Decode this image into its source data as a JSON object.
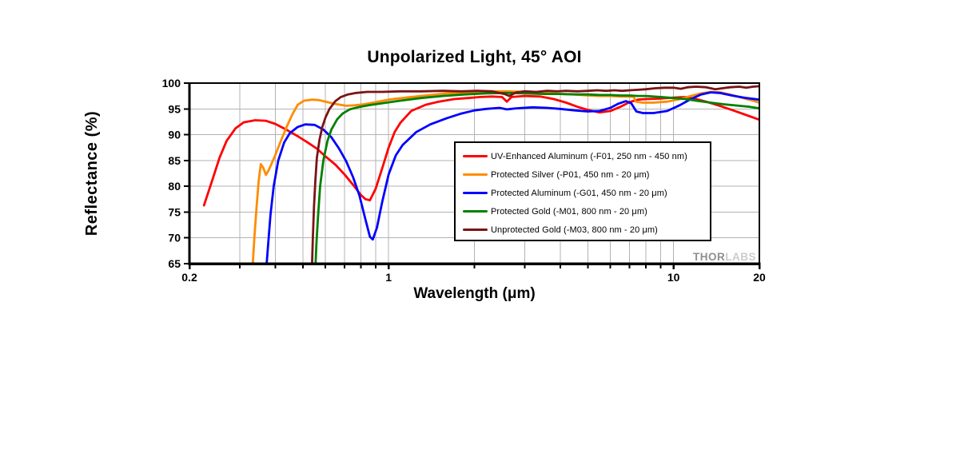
{
  "chart": {
    "title": "Unpolarized Light, 45° AOI",
    "xlabel": "Wavelength (μm)",
    "ylabel": "Reflectance (%)",
    "watermark_bold": "THOR",
    "watermark_light": "LABS"
  },
  "chart_data": {
    "type": "line",
    "title": "Unpolarized Light, 45° AOI",
    "xlabel": "Wavelength (μm)",
    "ylabel": "Reflectance (%)",
    "x_scale": "log",
    "xlim": [
      0.2,
      20
    ],
    "ylim": [
      65,
      100
    ],
    "grid": true,
    "grid_color": "#b3b3b3",
    "axis_color": "#000000",
    "x_ticks_labeled": [
      "0.2",
      "1",
      "10",
      "20"
    ],
    "x_gridlines": [
      0.3,
      0.4,
      0.5,
      0.6,
      0.7,
      0.8,
      0.9,
      1,
      2,
      3,
      4,
      5,
      6,
      7,
      8,
      9,
      10,
      20
    ],
    "y_ticks": [
      65,
      70,
      75,
      80,
      85,
      90,
      95,
      100
    ],
    "legend_position": "inside-right-middle",
    "series": [
      {
        "name": "UV-Enhanced Aluminum (-F01, 250 nm - 450 nm)",
        "color": "#ff0000",
        "points": [
          [
            0.225,
            76.3
          ],
          [
            0.24,
            81.0
          ],
          [
            0.255,
            85.5
          ],
          [
            0.27,
            88.8
          ],
          [
            0.29,
            91.2
          ],
          [
            0.31,
            92.4
          ],
          [
            0.34,
            92.8
          ],
          [
            0.37,
            92.7
          ],
          [
            0.4,
            92.1
          ],
          [
            0.44,
            90.9
          ],
          [
            0.48,
            89.7
          ],
          [
            0.52,
            88.5
          ],
          [
            0.56,
            87.3
          ],
          [
            0.6,
            85.8
          ],
          [
            0.65,
            84.2
          ],
          [
            0.7,
            82.3
          ],
          [
            0.75,
            80.3
          ],
          [
            0.8,
            78.3
          ],
          [
            0.83,
            77.5
          ],
          [
            0.86,
            77.3
          ],
          [
            0.9,
            79.5
          ],
          [
            0.95,
            83.5
          ],
          [
            1.0,
            87.5
          ],
          [
            1.05,
            90.5
          ],
          [
            1.1,
            92.3
          ],
          [
            1.2,
            94.6
          ],
          [
            1.35,
            95.8
          ],
          [
            1.5,
            96.4
          ],
          [
            1.7,
            96.9
          ],
          [
            1.9,
            97.1
          ],
          [
            2.1,
            97.3
          ],
          [
            2.3,
            97.4
          ],
          [
            2.5,
            97.3
          ],
          [
            2.6,
            96.4
          ],
          [
            2.7,
            97.3
          ],
          [
            3.0,
            97.5
          ],
          [
            3.4,
            97.4
          ],
          [
            3.8,
            96.9
          ],
          [
            4.2,
            96.2
          ],
          [
            4.6,
            95.4
          ],
          [
            5.0,
            94.8
          ],
          [
            5.5,
            94.3
          ],
          [
            6.0,
            94.6
          ],
          [
            6.5,
            95.4
          ],
          [
            7.0,
            96.3
          ],
          [
            7.5,
            96.8
          ],
          [
            8.0,
            96.9
          ],
          [
            9.0,
            97.0
          ],
          [
            10.0,
            97.2
          ],
          [
            11.0,
            97.3
          ],
          [
            12.0,
            96.9
          ],
          [
            13.0,
            96.4
          ],
          [
            14.5,
            95.6
          ],
          [
            16.0,
            94.8
          ],
          [
            18.0,
            93.8
          ],
          [
            20.0,
            92.9
          ]
        ]
      },
      {
        "name": "Protected Silver (-P01, 450 nm - 20 μm)",
        "color": "#ff8c00",
        "points": [
          [
            0.333,
            64
          ],
          [
            0.338,
            70
          ],
          [
            0.344,
            76
          ],
          [
            0.35,
            81
          ],
          [
            0.356,
            84.3
          ],
          [
            0.363,
            83.6
          ],
          [
            0.371,
            82.2
          ],
          [
            0.38,
            83.2
          ],
          [
            0.4,
            86.0
          ],
          [
            0.42,
            89.0
          ],
          [
            0.44,
            91.7
          ],
          [
            0.46,
            94.0
          ],
          [
            0.48,
            95.8
          ],
          [
            0.505,
            96.6
          ],
          [
            0.54,
            96.8
          ],
          [
            0.57,
            96.7
          ],
          [
            0.61,
            96.3
          ],
          [
            0.66,
            95.9
          ],
          [
            0.71,
            95.6
          ],
          [
            0.76,
            95.7
          ],
          [
            0.82,
            95.9
          ],
          [
            0.9,
            96.3
          ],
          [
            1.0,
            96.8
          ],
          [
            1.15,
            97.2
          ],
          [
            1.35,
            97.6
          ],
          [
            1.6,
            98.0
          ],
          [
            1.9,
            98.2
          ],
          [
            2.2,
            98.4
          ],
          [
            2.6,
            98.4
          ],
          [
            3.0,
            98.3
          ],
          [
            3.5,
            98.1
          ],
          [
            4.0,
            97.9
          ],
          [
            4.5,
            97.8
          ],
          [
            5.0,
            97.6
          ],
          [
            5.5,
            97.5
          ],
          [
            6.0,
            97.5
          ],
          [
            6.5,
            97.4
          ],
          [
            7.0,
            97.4
          ],
          [
            7.25,
            97.3
          ],
          [
            7.38,
            96.4
          ],
          [
            7.8,
            96.2
          ],
          [
            8.5,
            96.2
          ],
          [
            9.5,
            96.4
          ],
          [
            10.5,
            96.9
          ],
          [
            11.5,
            97.5
          ],
          [
            12.5,
            98.0
          ],
          [
            13.5,
            98.3
          ],
          [
            14.6,
            98.2
          ],
          [
            16.0,
            97.7
          ],
          [
            17.5,
            97.1
          ],
          [
            19.0,
            96.6
          ],
          [
            20.0,
            96.2
          ]
        ]
      },
      {
        "name": "Protected Aluminum (-G01, 450 nm - 20 μm)",
        "color": "#0000ff",
        "points": [
          [
            0.372,
            64
          ],
          [
            0.378,
            69
          ],
          [
            0.385,
            74.5
          ],
          [
            0.395,
            80
          ],
          [
            0.41,
            85
          ],
          [
            0.43,
            88.5
          ],
          [
            0.45,
            90.3
          ],
          [
            0.48,
            91.5
          ],
          [
            0.51,
            92.0
          ],
          [
            0.55,
            91.9
          ],
          [
            0.59,
            91.0
          ],
          [
            0.63,
            89.5
          ],
          [
            0.67,
            87.3
          ],
          [
            0.71,
            84.8
          ],
          [
            0.75,
            81.8
          ],
          [
            0.79,
            78.2
          ],
          [
            0.83,
            73.5
          ],
          [
            0.86,
            70.2
          ],
          [
            0.88,
            69.7
          ],
          [
            0.91,
            72.0
          ],
          [
            0.95,
            77.0
          ],
          [
            1.0,
            82.3
          ],
          [
            1.06,
            86.0
          ],
          [
            1.12,
            88.0
          ],
          [
            1.25,
            90.5
          ],
          [
            1.4,
            92.0
          ],
          [
            1.6,
            93.2
          ],
          [
            1.8,
            94.1
          ],
          [
            2.0,
            94.7
          ],
          [
            2.2,
            95.0
          ],
          [
            2.45,
            95.2
          ],
          [
            2.6,
            94.9
          ],
          [
            2.8,
            95.1
          ],
          [
            3.2,
            95.3
          ],
          [
            3.6,
            95.2
          ],
          [
            4.0,
            95.0
          ],
          [
            4.5,
            94.7
          ],
          [
            5.0,
            94.5
          ],
          [
            5.5,
            94.6
          ],
          [
            6.0,
            95.2
          ],
          [
            6.4,
            96.0
          ],
          [
            6.8,
            96.5
          ],
          [
            7.1,
            96.1
          ],
          [
            7.4,
            94.5
          ],
          [
            7.8,
            94.2
          ],
          [
            8.5,
            94.2
          ],
          [
            9.5,
            94.6
          ],
          [
            10.5,
            95.7
          ],
          [
            11.5,
            96.9
          ],
          [
            12.5,
            97.8
          ],
          [
            13.5,
            98.2
          ],
          [
            14.5,
            98.1
          ],
          [
            16.0,
            97.6
          ],
          [
            18.0,
            97.1
          ],
          [
            20.0,
            96.8
          ]
        ]
      },
      {
        "name": "Protected Gold (-M01, 800 nm - 20 μm)",
        "color": "#008000",
        "points": [
          [
            0.553,
            64
          ],
          [
            0.558,
            69
          ],
          [
            0.565,
            74
          ],
          [
            0.575,
            80
          ],
          [
            0.59,
            85
          ],
          [
            0.61,
            88.8
          ],
          [
            0.63,
            91.0
          ],
          [
            0.66,
            93.0
          ],
          [
            0.69,
            94.1
          ],
          [
            0.73,
            94.9
          ],
          [
            0.78,
            95.3
          ],
          [
            0.85,
            95.7
          ],
          [
            0.95,
            96.1
          ],
          [
            1.1,
            96.6
          ],
          [
            1.3,
            97.1
          ],
          [
            1.55,
            97.5
          ],
          [
            1.85,
            97.8
          ],
          [
            2.2,
            98.0
          ],
          [
            2.6,
            98.1
          ],
          [
            3.0,
            98.0
          ],
          [
            3.5,
            97.9
          ],
          [
            4.0,
            97.9
          ],
          [
            4.5,
            97.8
          ],
          [
            5.0,
            97.8
          ],
          [
            5.5,
            97.7
          ],
          [
            6.0,
            97.7
          ],
          [
            6.5,
            97.6
          ],
          [
            7.0,
            97.6
          ],
          [
            7.5,
            97.5
          ],
          [
            8.0,
            97.5
          ],
          [
            9.0,
            97.3
          ],
          [
            10.0,
            97.1
          ],
          [
            11.0,
            96.9
          ],
          [
            12.0,
            96.6
          ],
          [
            13.5,
            96.2
          ],
          [
            15.0,
            95.9
          ],
          [
            17.0,
            95.6
          ],
          [
            18.5,
            95.4
          ],
          [
            20.0,
            95.1
          ]
        ]
      },
      {
        "name": "Unprotected Gold (-M03, 800 nm - 20 μm)",
        "color": "#7a1414",
        "points": [
          [
            0.538,
            64
          ],
          [
            0.542,
            70
          ],
          [
            0.547,
            76
          ],
          [
            0.553,
            81
          ],
          [
            0.56,
            85.5
          ],
          [
            0.572,
            89.0
          ],
          [
            0.585,
            91.5
          ],
          [
            0.6,
            93.3
          ],
          [
            0.62,
            95.0
          ],
          [
            0.65,
            96.5
          ],
          [
            0.68,
            97.3
          ],
          [
            0.72,
            97.8
          ],
          [
            0.77,
            98.1
          ],
          [
            0.84,
            98.3
          ],
          [
            0.95,
            98.3
          ],
          [
            1.1,
            98.4
          ],
          [
            1.3,
            98.4
          ],
          [
            1.55,
            98.5
          ],
          [
            1.8,
            98.4
          ],
          [
            2.05,
            98.5
          ],
          [
            2.3,
            98.4
          ],
          [
            2.55,
            97.9
          ],
          [
            2.65,
            97.5
          ],
          [
            2.8,
            98.2
          ],
          [
            3.0,
            98.4
          ],
          [
            3.3,
            98.3
          ],
          [
            3.6,
            98.5
          ],
          [
            3.9,
            98.4
          ],
          [
            4.2,
            98.5
          ],
          [
            4.6,
            98.4
          ],
          [
            5.0,
            98.5
          ],
          [
            5.4,
            98.6
          ],
          [
            5.8,
            98.5
          ],
          [
            6.2,
            98.6
          ],
          [
            6.6,
            98.5
          ],
          [
            7.0,
            98.6
          ],
          [
            7.5,
            98.7
          ],
          [
            8.0,
            98.8
          ],
          [
            8.6,
            99.0
          ],
          [
            9.3,
            99.1
          ],
          [
            10.0,
            99.1
          ],
          [
            10.6,
            98.9
          ],
          [
            11.2,
            99.2
          ],
          [
            12.0,
            99.3
          ],
          [
            13.0,
            99.2
          ],
          [
            14.0,
            98.8
          ],
          [
            14.8,
            99.0
          ],
          [
            15.8,
            99.2
          ],
          [
            17.0,
            99.3
          ],
          [
            18.0,
            99.1
          ],
          [
            19.0,
            99.3
          ],
          [
            20.0,
            99.4
          ]
        ]
      }
    ]
  },
  "layout_note": "Reflectance vs wavelength plot, log x-axis, legend inside plot, THORLABS watermark bottom-right"
}
